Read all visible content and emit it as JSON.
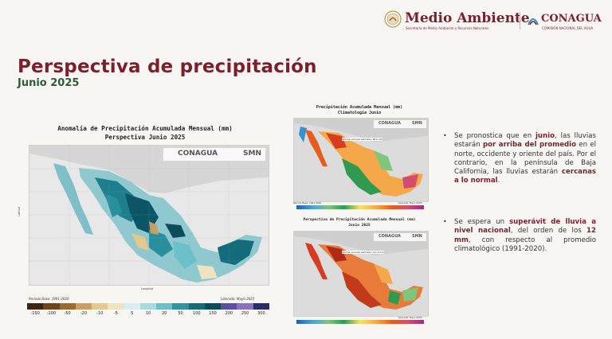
{
  "header": {
    "brand": "Medio Ambiente",
    "brand_sub": "Secretaría de Medio Ambiente y Recursos Naturales",
    "agency": "CONAGUA",
    "agency_sub": "COMISIÓN NACIONAL DEL AGUA"
  },
  "page": {
    "title": "Perspectiva de precipitación",
    "subtitle": "Junio 2025"
  },
  "main_map": {
    "title_line1": "Anomalía de Precipitación Acumulada Mensual (mm)",
    "title_line2": "Perspectiva Junio 2025",
    "logo1": "CONAGUA",
    "logo2": "SMN",
    "ylabel": "Latitud",
    "xlabel": "Longitud",
    "base_period": "Periodo Base: 1991-2020",
    "released": "Liberado: Mayo-2025",
    "colorbar": {
      "ticks": [
        "-150",
        "-100",
        "-50",
        "-20",
        "-10",
        "-5",
        "5",
        "10",
        "20",
        "50",
        "100",
        "150",
        "200",
        "250",
        "300"
      ],
      "colors": [
        "#3d2310",
        "#6e4418",
        "#9c6a2c",
        "#c9a060",
        "#e2c98f",
        "#efe3c0",
        "#d8eef0",
        "#a8dbe0",
        "#6cc0c8",
        "#2e95a3",
        "#146b7a",
        "#0b4c5c",
        "#5b4fa3",
        "#8b6fc2",
        "#2a2a6e"
      ]
    }
  },
  "clim_map": {
    "title_line1": "Precipitación Acumulada Mensual (mm)",
    "title_line2": "Climatología Junio",
    "logo1": "CONAGUA",
    "logo2": "SMN",
    "note": "Lámina nacional estimada: 98.8 mm",
    "base_period": "Periodo Base: 1991-2020",
    "released": "Liberado: Mayo 2025"
  },
  "forecast_map": {
    "title_line1": "Perspectiva de Precipitación Acumulada Mensual (mm)",
    "title_line2": "Junio 2025",
    "logo1": "CONAGUA",
    "logo2": "SMN",
    "note": "Lámina nacional estimada: 111.0 mm",
    "released": "Liberado: Mayo 2025"
  },
  "bullets": {
    "b1_p1": "Se pronostica que en ",
    "b1_k1": "junio",
    "b1_p2": ", las lluvias estarán ",
    "b1_k2": "por arriba del promedio",
    "b1_p3": " en el norte, occidente y oriente del país. Por el contrario, en la península de Baja California, las lluvias estarán ",
    "b1_k3": "cercanas a lo normal",
    "b1_p4": ".",
    "b2_p1": "Se espera un ",
    "b2_k1": "superávit de lluvia a nivel nacional",
    "b2_p2": ", del orden de los ",
    "b2_k2": "12 mm",
    "b2_p3": ", con respecto al promedio climatológico (1991-2020)."
  },
  "colors": {
    "brand": "#7b1f2e",
    "subtitle": "#2f5a3a"
  }
}
